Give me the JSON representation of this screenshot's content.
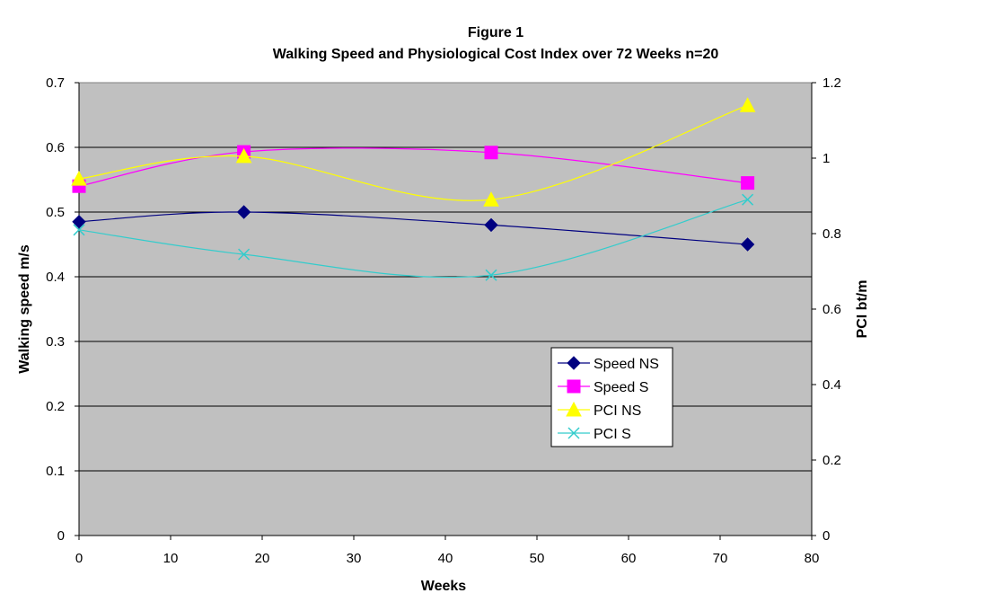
{
  "chart_data": {
    "type": "line",
    "title": "Figure 1",
    "subtitle": "Walking Speed and Physiological Cost Index over 72 Weeks n=20",
    "xlabel": "Weeks",
    "ylabel": "Walking speed m/s",
    "y2label": "PCI bt/m",
    "xlim": [
      0,
      80
    ],
    "ylim": [
      0,
      0.7
    ],
    "y2lim": [
      0,
      1.2
    ],
    "x_ticks": [
      0,
      10,
      20,
      30,
      40,
      50,
      60,
      70,
      80
    ],
    "y_ticks": [
      0,
      0.1,
      0.2,
      0.3,
      0.4,
      0.5,
      0.6,
      0.7
    ],
    "y2_ticks": [
      0,
      0.2,
      0.4,
      0.6,
      0.8,
      1,
      1.2
    ],
    "x_tick_labels": [
      "0",
      "10",
      "20",
      "30",
      "40",
      "50",
      "60",
      "70",
      "80"
    ],
    "y_tick_labels": [
      "0",
      "0.1",
      "0.2",
      "0.3",
      "0.4",
      "0.5",
      "0.6",
      "0.7"
    ],
    "y2_tick_labels": [
      "0",
      "0.2",
      "0.4",
      "0.6",
      "0.8",
      "1",
      "1.2"
    ],
    "grid": "horizontal",
    "plot_background": "#c0c0c0",
    "legend_position": "right-middle",
    "series": [
      {
        "name": "Speed NS",
        "axis": "left",
        "marker": "diamond",
        "color": "#000080",
        "x": [
          0,
          18,
          45,
          73
        ],
        "values": [
          0.485,
          0.5,
          0.48,
          0.45
        ]
      },
      {
        "name": "Speed S",
        "axis": "left",
        "marker": "square",
        "color": "#ff00ff",
        "x": [
          0,
          18,
          45,
          73
        ],
        "values": [
          0.54,
          0.593,
          0.592,
          0.545
        ]
      },
      {
        "name": "PCI NS",
        "axis": "right",
        "marker": "triangle",
        "color": "#ffff00",
        "x": [
          0,
          18,
          45,
          73
        ],
        "values": [
          0.945,
          1.005,
          0.89,
          1.14
        ]
      },
      {
        "name": "PCI S",
        "axis": "right",
        "marker": "x",
        "color": "#33cccc",
        "x": [
          0,
          18,
          45,
          73
        ],
        "values": [
          0.81,
          0.745,
          0.69,
          0.89
        ]
      }
    ]
  }
}
